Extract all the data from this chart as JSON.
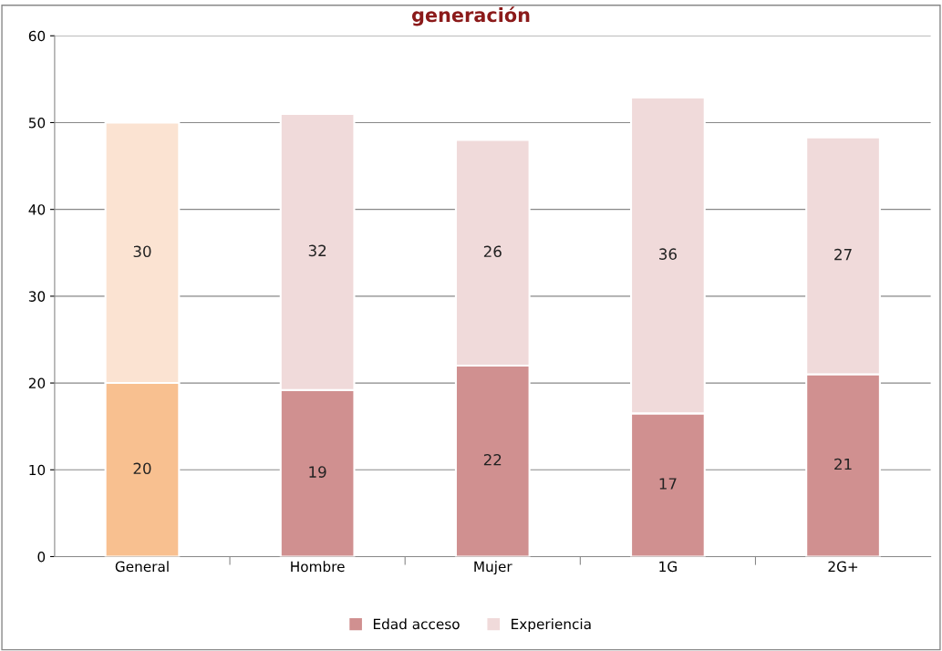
{
  "chart_data": {
    "type": "bar",
    "title": "generación",
    "stacked": true,
    "categories": [
      "General",
      "Hombre",
      "Mujer",
      "1G",
      "2G+"
    ],
    "series": [
      {
        "name": "Edad acceso",
        "color": "#d09090",
        "colors": [
          "#f8c090",
          "#d09090",
          "#d09090",
          "#d09090",
          "#d09090"
        ],
        "values": [
          20,
          19.2,
          22,
          16.5,
          21
        ],
        "value_labels": [
          "20",
          "19",
          "22",
          "17",
          "21"
        ]
      },
      {
        "name": "Experiencia",
        "color": "#f0dada",
        "colors": [
          "#fbe3d2",
          "#f0dada",
          "#f0dada",
          "#f0dada",
          "#f0dada"
        ],
        "values": [
          30,
          31.8,
          26,
          36.4,
          27.3
        ],
        "value_labels": [
          "30",
          "32",
          "26",
          "36",
          "27"
        ]
      }
    ],
    "ylim": [
      0,
      60
    ],
    "yticks": [
      0,
      10,
      20,
      30,
      40,
      50,
      60
    ],
    "grid": "y",
    "legend": "bottom"
  }
}
